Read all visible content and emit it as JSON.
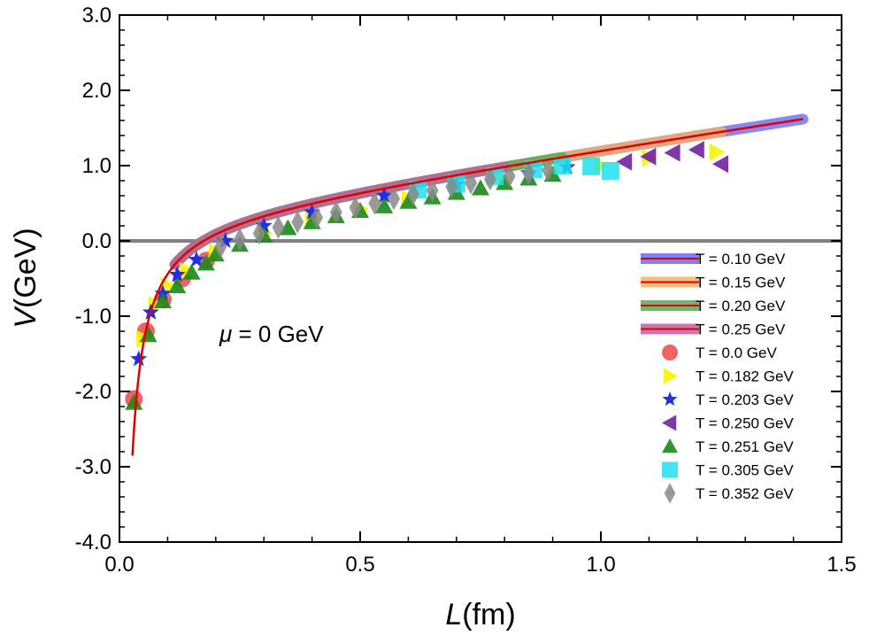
{
  "chart_data": {
    "type": "scatter",
    "xlabel_main": "L",
    "xlabel_unit": "(fm)",
    "ylabel_main": "V",
    "ylabel_unit": "(GeV)",
    "xlim": [
      0.0,
      1.5
    ],
    "ylim": [
      -4.0,
      3.0
    ],
    "xticks": [
      0.0,
      0.5,
      1.0,
      1.5
    ],
    "xtick_labels": [
      "0.0",
      "0.5",
      "1.0",
      "1.5"
    ],
    "yticks": [
      -4.0,
      -3.0,
      -2.0,
      -1.0,
      0.0,
      1.0,
      2.0,
      3.0
    ],
    "ytick_labels": [
      "-4.0",
      "-3.0",
      "-2.0",
      "-1.0",
      "0.0",
      "1.0",
      "2.0",
      "3.0"
    ],
    "annotation": {
      "symbol": "μ",
      "text": " = 0 GeV"
    },
    "zero_line": {
      "y": 0.0,
      "color": "#808080"
    },
    "legend_placement": "bottom-right",
    "curves": [
      {
        "name": "T = 0.10 GeV",
        "color": "#6a6af0",
        "range": [
          0.115,
          1.42
        ]
      },
      {
        "name": "T = 0.15 GeV",
        "color": "#f5b060",
        "range": [
          0.115,
          1.25
        ]
      },
      {
        "name": "T = 0.20 GeV",
        "color": "#58a858",
        "range": [
          0.115,
          0.92
        ]
      },
      {
        "name": "T = 0.25 GeV",
        "color": "#c060a0",
        "range": [
          0.115,
          0.8
        ]
      }
    ],
    "fit_line": {
      "color": "#e00000",
      "model": "V = -a/L + sigma*L + c",
      "a": 0.0866,
      "sigma": 0.95,
      "c": 0.33,
      "range": [
        0.027,
        1.42
      ]
    },
    "series": [
      {
        "name": "T = 0.0 GeV",
        "marker": "circle",
        "color": "#e83030",
        "x": [
          0.03,
          0.055,
          0.09,
          0.13,
          0.18
        ],
        "y": [
          -2.1,
          -1.2,
          -0.78,
          -0.5,
          -0.26
        ]
      },
      {
        "name": "T = 0.182 GeV",
        "marker": "triangle-right",
        "color": "#f5f500",
        "x": [
          0.05,
          0.075,
          0.1,
          0.14,
          0.2,
          0.3,
          0.4,
          0.5,
          0.6,
          0.7,
          0.8,
          0.9,
          1.0,
          1.1,
          1.24
        ],
        "y": [
          -1.3,
          -0.85,
          -0.6,
          -0.4,
          -0.15,
          0.1,
          0.28,
          0.42,
          0.56,
          0.7,
          0.82,
          0.93,
          1.0,
          1.1,
          1.18
        ]
      },
      {
        "name": "T = 0.203 GeV",
        "marker": "star",
        "color": "#2030e0",
        "x": [
          0.04,
          0.065,
          0.09,
          0.12,
          0.16,
          0.22,
          0.3,
          0.4,
          0.55,
          0.7,
          0.85,
          0.93
        ],
        "y": [
          -1.57,
          -0.95,
          -0.7,
          -0.45,
          -0.25,
          0.0,
          0.2,
          0.38,
          0.6,
          0.75,
          0.9,
          0.98
        ]
      },
      {
        "name": "T = 0.250 GeV",
        "marker": "triangle-left",
        "color": "#7020a0",
        "x": [
          1.05,
          1.1,
          1.15,
          1.2,
          1.25
        ],
        "y": [
          1.05,
          1.12,
          1.17,
          1.21,
          1.02
        ]
      },
      {
        "name": "T = 0.251 GeV",
        "marker": "triangle-up",
        "color": "#1a8a1a",
        "x": [
          0.03,
          0.06,
          0.09,
          0.12,
          0.15,
          0.18,
          0.2,
          0.25,
          0.3,
          0.35,
          0.4,
          0.45,
          0.5,
          0.55,
          0.6,
          0.65,
          0.7,
          0.75,
          0.8,
          0.85,
          0.9
        ],
        "y": [
          -2.15,
          -1.25,
          -0.8,
          -0.6,
          -0.42,
          -0.3,
          -0.18,
          -0.05,
          0.07,
          0.17,
          0.25,
          0.33,
          0.4,
          0.46,
          0.52,
          0.58,
          0.64,
          0.7,
          0.77,
          0.83,
          0.88
        ]
      },
      {
        "name": "T = 0.305 GeV",
        "marker": "square",
        "color": "#20e0f0",
        "x": [
          0.62,
          0.7,
          0.78,
          0.86,
          0.92,
          0.98,
          1.02
        ],
        "y": [
          0.68,
          0.76,
          0.86,
          0.95,
          1.0,
          0.99,
          0.93
        ]
      },
      {
        "name": "T = 0.352 GeV",
        "marker": "diamond",
        "color": "#888888",
        "x": [
          0.21,
          0.25,
          0.29,
          0.33,
          0.37,
          0.41,
          0.45,
          0.49,
          0.53,
          0.57,
          0.61,
          0.65,
          0.69,
          0.73,
          0.77,
          0.81,
          0.85,
          0.89
        ],
        "y": [
          -0.08,
          0.02,
          0.1,
          0.18,
          0.25,
          0.31,
          0.38,
          0.44,
          0.5,
          0.56,
          0.62,
          0.67,
          0.72,
          0.77,
          0.82,
          0.86,
          0.9,
          0.94
        ]
      }
    ]
  }
}
